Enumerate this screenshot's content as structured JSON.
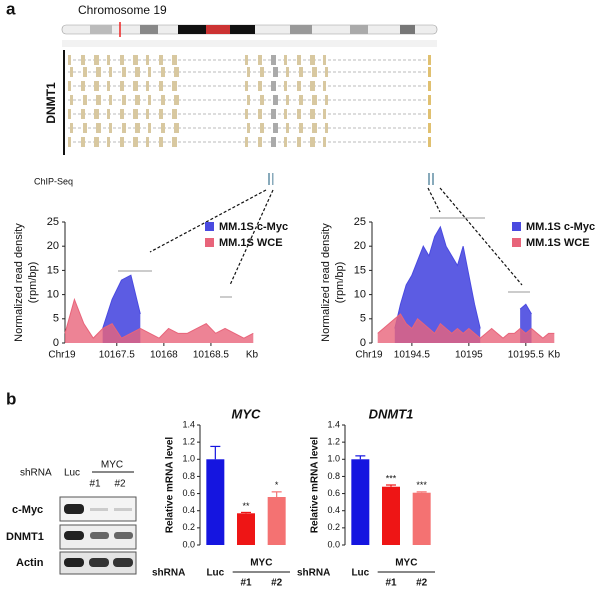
{
  "panels": [
    "a",
    "b"
  ],
  "gene_track": {
    "chromosome": "Chromosome 19",
    "gene": "DNMT1",
    "track_label": "ChIP-Seq"
  },
  "western_blot": {
    "shrna_label": "shRNA",
    "lanes": [
      "Luc",
      "#1",
      "#2"
    ],
    "group": "MYC",
    "rows": [
      "c-Myc",
      "DNMT1",
      "Actin"
    ]
  },
  "chart_data": [
    {
      "type": "area",
      "ylabel": [
        "Normalized read density",
        "(rpm/bp)"
      ],
      "x_prefix": "Chr19",
      "x_unit": "Kb",
      "xlim": [
        10166.95,
        10169.0
      ],
      "xticks": [
        10167.5,
        10168,
        10168.5
      ],
      "ylim": [
        0,
        25
      ],
      "yticks": [
        0,
        5,
        10,
        15,
        20,
        25
      ],
      "x": [
        10166.95,
        10167.05,
        10167.15,
        10167.25,
        10167.35,
        10167.45,
        10167.55,
        10167.65,
        10167.75,
        10167.85,
        10167.95,
        10168.05,
        10168.15,
        10168.25,
        10168.35,
        10168.45,
        10168.55,
        10168.65,
        10168.75,
        10168.85,
        10168.95
      ],
      "series": [
        {
          "name": "MM.1S c-Myc",
          "color": "#4a4ae0",
          "values": [
            null,
            null,
            null,
            null,
            3,
            9,
            13,
            14,
            6,
            null,
            null,
            null,
            null,
            null,
            null,
            null,
            null,
            4,
            null,
            null,
            null
          ]
        },
        {
          "name": "MM.1S WCE",
          "color": "#e8647a",
          "values": [
            2,
            9,
            4,
            1,
            3,
            4,
            1,
            2,
            3,
            2,
            1,
            3,
            2,
            2,
            3,
            4,
            2,
            3,
            2,
            1,
            2
          ]
        }
      ]
    },
    {
      "type": "area",
      "ylabel": [
        "Normalized read density",
        "(rpm/bp)"
      ],
      "x_prefix": "Chr19",
      "x_unit": "Kb",
      "xlim": [
        10194.15,
        10195.8
      ],
      "xticks": [
        10194.5,
        10195,
        10195.5
      ],
      "ylim": [
        0,
        25
      ],
      "yticks": [
        0,
        5,
        10,
        15,
        20,
        25
      ],
      "x": [
        10194.2,
        10194.25,
        10194.3,
        10194.35,
        10194.4,
        10194.45,
        10194.5,
        10194.55,
        10194.6,
        10194.65,
        10194.7,
        10194.75,
        10194.8,
        10194.85,
        10194.9,
        10194.95,
        10195.0,
        10195.05,
        10195.1,
        10195.15,
        10195.2,
        10195.25,
        10195.3,
        10195.35,
        10195.4,
        10195.45,
        10195.5,
        10195.55,
        10195.6,
        10195.65,
        10195.7,
        10195.75
      ],
      "series": [
        {
          "name": "MM.1S c-Myc",
          "color": "#4a4ae0",
          "values": [
            null,
            null,
            null,
            3,
            8,
            12,
            14,
            17,
            20,
            18,
            22,
            24,
            20,
            18,
            16,
            20,
            14,
            8,
            3,
            null,
            null,
            null,
            5,
            null,
            null,
            7,
            8,
            6,
            null,
            null,
            null,
            null
          ]
        },
        {
          "name": "MM.1S WCE",
          "color": "#e8647a",
          "values": [
            2,
            3,
            4,
            5,
            6,
            4,
            3,
            5,
            4,
            3,
            2,
            4,
            3,
            2,
            3,
            2,
            3,
            2,
            1,
            2,
            3,
            2,
            1,
            2,
            2,
            3,
            2,
            3,
            2,
            1,
            2,
            2
          ]
        }
      ]
    },
    {
      "type": "bar",
      "title": "MYC",
      "ylabel": "Relative mRNA level",
      "axis_label": "shRNA",
      "group_label": "MYC",
      "categories": [
        "Luc",
        "#1",
        "#2"
      ],
      "values": [
        1.0,
        0.37,
        0.56
      ],
      "errors": [
        0.15,
        0.01,
        0.06
      ],
      "annotations": [
        null,
        "**",
        "*"
      ],
      "colors": [
        "#1515e0",
        "#ee1515",
        "#f47272"
      ],
      "ylim": [
        0,
        1.4
      ],
      "yticks": [
        {
          "value": 0,
          "label": "0.0"
        },
        0.2,
        0.4,
        0.6,
        0.8,
        {
          "value": 1,
          "label": "1.0"
        },
        1.2,
        1.4
      ]
    },
    {
      "type": "bar",
      "title": "DNMT1",
      "ylabel": "Relative mRNA level",
      "axis_label": "shRNA",
      "group_label": "MYC",
      "categories": [
        "Luc",
        "#1",
        "#2"
      ],
      "values": [
        1.0,
        0.68,
        0.61
      ],
      "errors": [
        0.04,
        0.02,
        0.01
      ],
      "annotations": [
        null,
        "***",
        "***"
      ],
      "colors": [
        "#1515e0",
        "#ee1515",
        "#f47272"
      ],
      "ylim": [
        0,
        1.4
      ],
      "yticks": [
        {
          "value": 0,
          "label": "0.0"
        },
        0.2,
        0.4,
        0.6,
        0.8,
        {
          "value": 1,
          "label": "1.0"
        },
        1.2,
        1.4
      ]
    }
  ]
}
